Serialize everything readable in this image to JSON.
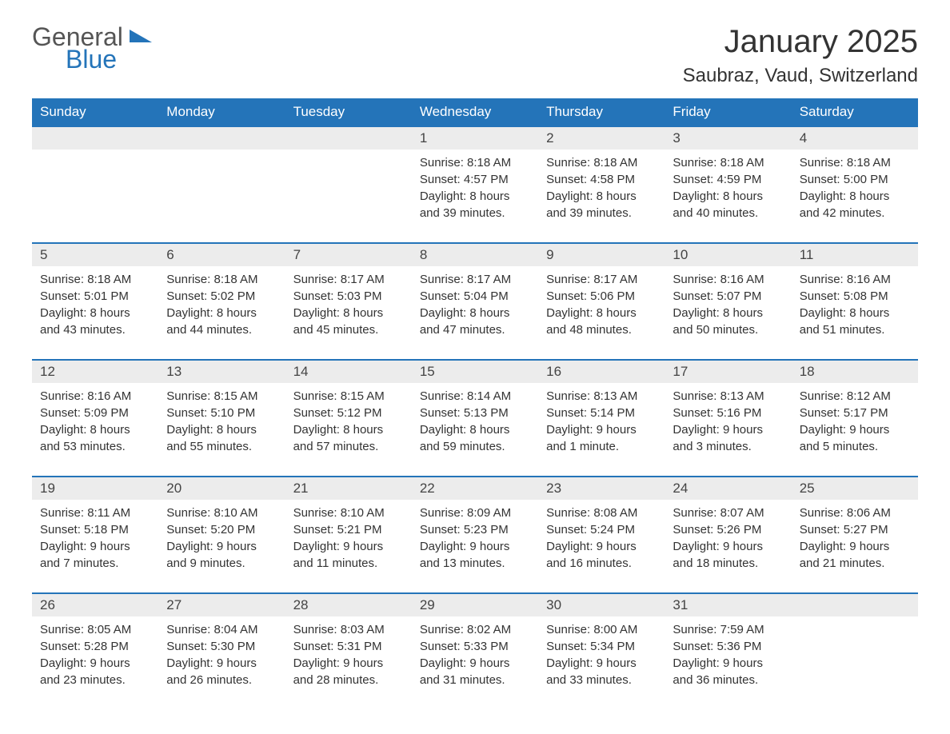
{
  "logo": {
    "text1": "General",
    "text2": "Blue"
  },
  "title": "January 2025",
  "location": "Saubraz, Vaud, Switzerland",
  "colors": {
    "header_bg": "#2474b9",
    "header_text": "#ffffff",
    "daynum_bg": "#ececec",
    "daynum_border": "#2474b9",
    "body_text": "#333333",
    "background": "#ffffff",
    "logo_gray": "#555555",
    "logo_blue": "#2474b9"
  },
  "fonts": {
    "title_size_pt": 30,
    "location_size_pt": 18,
    "dayhead_size_pt": 13,
    "cell_size_pt": 11
  },
  "dayNames": [
    "Sunday",
    "Monday",
    "Tuesday",
    "Wednesday",
    "Thursday",
    "Friday",
    "Saturday"
  ],
  "weeks": [
    [
      null,
      null,
      null,
      {
        "n": "1",
        "sunrise": "8:18 AM",
        "sunset": "4:57 PM",
        "daylight": "8 hours and 39 minutes."
      },
      {
        "n": "2",
        "sunrise": "8:18 AM",
        "sunset": "4:58 PM",
        "daylight": "8 hours and 39 minutes."
      },
      {
        "n": "3",
        "sunrise": "8:18 AM",
        "sunset": "4:59 PM",
        "daylight": "8 hours and 40 minutes."
      },
      {
        "n": "4",
        "sunrise": "8:18 AM",
        "sunset": "5:00 PM",
        "daylight": "8 hours and 42 minutes."
      }
    ],
    [
      {
        "n": "5",
        "sunrise": "8:18 AM",
        "sunset": "5:01 PM",
        "daylight": "8 hours and 43 minutes."
      },
      {
        "n": "6",
        "sunrise": "8:18 AM",
        "sunset": "5:02 PM",
        "daylight": "8 hours and 44 minutes."
      },
      {
        "n": "7",
        "sunrise": "8:17 AM",
        "sunset": "5:03 PM",
        "daylight": "8 hours and 45 minutes."
      },
      {
        "n": "8",
        "sunrise": "8:17 AM",
        "sunset": "5:04 PM",
        "daylight": "8 hours and 47 minutes."
      },
      {
        "n": "9",
        "sunrise": "8:17 AM",
        "sunset": "5:06 PM",
        "daylight": "8 hours and 48 minutes."
      },
      {
        "n": "10",
        "sunrise": "8:16 AM",
        "sunset": "5:07 PM",
        "daylight": "8 hours and 50 minutes."
      },
      {
        "n": "11",
        "sunrise": "8:16 AM",
        "sunset": "5:08 PM",
        "daylight": "8 hours and 51 minutes."
      }
    ],
    [
      {
        "n": "12",
        "sunrise": "8:16 AM",
        "sunset": "5:09 PM",
        "daylight": "8 hours and 53 minutes."
      },
      {
        "n": "13",
        "sunrise": "8:15 AM",
        "sunset": "5:10 PM",
        "daylight": "8 hours and 55 minutes."
      },
      {
        "n": "14",
        "sunrise": "8:15 AM",
        "sunset": "5:12 PM",
        "daylight": "8 hours and 57 minutes."
      },
      {
        "n": "15",
        "sunrise": "8:14 AM",
        "sunset": "5:13 PM",
        "daylight": "8 hours and 59 minutes."
      },
      {
        "n": "16",
        "sunrise": "8:13 AM",
        "sunset": "5:14 PM",
        "daylight": "9 hours and 1 minute."
      },
      {
        "n": "17",
        "sunrise": "8:13 AM",
        "sunset": "5:16 PM",
        "daylight": "9 hours and 3 minutes."
      },
      {
        "n": "18",
        "sunrise": "8:12 AM",
        "sunset": "5:17 PM",
        "daylight": "9 hours and 5 minutes."
      }
    ],
    [
      {
        "n": "19",
        "sunrise": "8:11 AM",
        "sunset": "5:18 PM",
        "daylight": "9 hours and 7 minutes."
      },
      {
        "n": "20",
        "sunrise": "8:10 AM",
        "sunset": "5:20 PM",
        "daylight": "9 hours and 9 minutes."
      },
      {
        "n": "21",
        "sunrise": "8:10 AM",
        "sunset": "5:21 PM",
        "daylight": "9 hours and 11 minutes."
      },
      {
        "n": "22",
        "sunrise": "8:09 AM",
        "sunset": "5:23 PM",
        "daylight": "9 hours and 13 minutes."
      },
      {
        "n": "23",
        "sunrise": "8:08 AM",
        "sunset": "5:24 PM",
        "daylight": "9 hours and 16 minutes."
      },
      {
        "n": "24",
        "sunrise": "8:07 AM",
        "sunset": "5:26 PM",
        "daylight": "9 hours and 18 minutes."
      },
      {
        "n": "25",
        "sunrise": "8:06 AM",
        "sunset": "5:27 PM",
        "daylight": "9 hours and 21 minutes."
      }
    ],
    [
      {
        "n": "26",
        "sunrise": "8:05 AM",
        "sunset": "5:28 PM",
        "daylight": "9 hours and 23 minutes."
      },
      {
        "n": "27",
        "sunrise": "8:04 AM",
        "sunset": "5:30 PM",
        "daylight": "9 hours and 26 minutes."
      },
      {
        "n": "28",
        "sunrise": "8:03 AM",
        "sunset": "5:31 PM",
        "daylight": "9 hours and 28 minutes."
      },
      {
        "n": "29",
        "sunrise": "8:02 AM",
        "sunset": "5:33 PM",
        "daylight": "9 hours and 31 minutes."
      },
      {
        "n": "30",
        "sunrise": "8:00 AM",
        "sunset": "5:34 PM",
        "daylight": "9 hours and 33 minutes."
      },
      {
        "n": "31",
        "sunrise": "7:59 AM",
        "sunset": "5:36 PM",
        "daylight": "9 hours and 36 minutes."
      },
      null
    ]
  ],
  "labels": {
    "sunrise": "Sunrise: ",
    "sunset": "Sunset: ",
    "daylight": "Daylight: "
  }
}
